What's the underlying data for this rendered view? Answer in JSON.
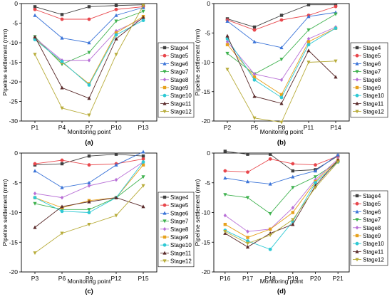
{
  "series_names": [
    "Stage4",
    "Stage5",
    "Stage6",
    "Stage7",
    "Stage8",
    "Stage9",
    "Stage10",
    "Stage11",
    "Stage12"
  ],
  "series_colors": [
    "#404040",
    "#e8474c",
    "#3b74d8",
    "#3fb24f",
    "#b86fd6",
    "#e6a21e",
    "#2ec9d4",
    "#5a2b2b",
    "#b8ac3a"
  ],
  "chart_data": [
    {
      "type": "line",
      "panel_label": "(a)",
      "xlabel": "Monitoring point",
      "ylabel": "Pipeline settlement (mm)",
      "categories": [
        "P1",
        "P4",
        "P7",
        "P10",
        "P13"
      ],
      "ylim": [
        -30,
        0
      ],
      "yticks": [
        0,
        -5,
        -10,
        -15,
        -20,
        -25,
        -30
      ],
      "legend_position": "right",
      "series": [
        {
          "name": "Stage4",
          "values": [
            -0.8,
            -2.8,
            -0.8,
            -0.5,
            -0.3
          ]
        },
        {
          "name": "Stage5",
          "values": [
            -1.5,
            -4.0,
            -4.0,
            -1.5,
            -0.8
          ]
        },
        {
          "name": "Stage6",
          "values": [
            -3.0,
            -8.8,
            -10.0,
            -3.0,
            -1.0
          ]
        },
        {
          "name": "Stage7",
          "values": [
            -8.5,
            -15.5,
            -12.5,
            -4.5,
            -2.0
          ]
        },
        {
          "name": "Stage8",
          "values": [
            -8.8,
            -14.5,
            -14.5,
            -7.0,
            -3.8
          ]
        },
        {
          "name": "Stage9",
          "values": [
            -9.0,
            -15.0,
            -20.5,
            -7.5,
            -3.3
          ]
        },
        {
          "name": "Stage10",
          "values": [
            -9.2,
            -14.8,
            -20.8,
            -8.0,
            -4.3
          ]
        },
        {
          "name": "Stage11",
          "values": [
            -8.5,
            -21.5,
            -24.2,
            -9.0,
            -3.5
          ]
        },
        {
          "name": "Stage12",
          "values": [
            -13.0,
            -26.7,
            -28.5,
            -13.0,
            -0.5
          ]
        }
      ]
    },
    {
      "type": "line",
      "panel_label": "(b)",
      "xlabel": "Monitoring point",
      "ylabel": "Pipeline settlement (mm)",
      "categories": [
        "P2",
        "P5",
        "P8",
        "P11",
        "P14"
      ],
      "ylim": [
        -20,
        0
      ],
      "yticks": [
        0,
        -5,
        -10,
        -15,
        -20
      ],
      "legend_position": "right",
      "series": [
        {
          "name": "Stage4",
          "values": [
            -2.6,
            -4.0,
            -2.0,
            -0.2,
            -0.2
          ]
        },
        {
          "name": "Stage5",
          "values": [
            -2.8,
            -4.5,
            -2.8,
            -2.0,
            -0.5
          ]
        },
        {
          "name": "Stage6",
          "values": [
            -3.0,
            -6.5,
            -7.5,
            -2.2,
            -1.5
          ]
        },
        {
          "name": "Stage7",
          "values": [
            -8.5,
            -12.0,
            -9.5,
            -4.5,
            -1.8
          ]
        },
        {
          "name": "Stage8",
          "values": [
            -6.5,
            -12.0,
            -13.0,
            -6.0,
            -4.0
          ]
        },
        {
          "name": "Stage9",
          "values": [
            -7.0,
            -12.5,
            -15.5,
            -6.5,
            -4.2
          ]
        },
        {
          "name": "Stage10",
          "values": [
            -6.0,
            -13.0,
            -16.0,
            -7.0,
            -4.2
          ]
        },
        {
          "name": "Stage11",
          "values": [
            -5.5,
            -15.8,
            -17.0,
            -8.0,
            -12.5
          ]
        },
        {
          "name": "Stage12",
          "values": [
            -11.2,
            -19.5,
            -20.2,
            -10.0,
            -9.8
          ]
        }
      ]
    },
    {
      "type": "line",
      "panel_label": "(c)",
      "xlabel": "Monitoring point",
      "ylabel": "Pipeline settlement (mm)",
      "categories": [
        "P3",
        "P6",
        "P9",
        "P12",
        "P15"
      ],
      "ylim": [
        -20,
        0
      ],
      "yticks": [
        0,
        -5,
        -10,
        -15,
        -20
      ],
      "legend_position": "right",
      "series": [
        {
          "name": "Stage4",
          "values": [
            -2.0,
            -1.8,
            -0.5,
            -0.2,
            -0.5
          ]
        },
        {
          "name": "Stage5",
          "values": [
            -1.8,
            -1.2,
            -2.0,
            -1.8,
            -1.0
          ]
        },
        {
          "name": "Stage6",
          "values": [
            -3.0,
            -5.8,
            -5.0,
            -2.0,
            0.2
          ]
        },
        {
          "name": "Stage7",
          "values": [
            -8.5,
            -9.5,
            -9.5,
            -7.5,
            -4.0
          ]
        },
        {
          "name": "Stage8",
          "values": [
            -6.8,
            -7.5,
            -5.5,
            -4.5,
            -1.5
          ]
        },
        {
          "name": "Stage9",
          "values": [
            -7.5,
            -9.2,
            -8.0,
            -7.5,
            -2.0
          ]
        },
        {
          "name": "Stage10",
          "values": [
            -7.5,
            -9.8,
            -10.0,
            -7.5,
            -1.5
          ]
        },
        {
          "name": "Stage11",
          "values": [
            -12.5,
            -9.0,
            -8.2,
            -7.5,
            -9.0
          ]
        },
        {
          "name": "Stage12",
          "values": [
            -16.8,
            -13.5,
            -12.0,
            -10.5,
            -5.5
          ]
        }
      ]
    },
    {
      "type": "line",
      "panel_label": "(d)",
      "xlabel": "Monitoring point",
      "ylabel": "Pipeline settlement (mm)",
      "categories": [
        "P16",
        "P17",
        "P18",
        "P19",
        "P20",
        "P21"
      ],
      "ylim": [
        -20,
        0
      ],
      "yticks": [
        0,
        -5,
        -10,
        -15,
        -20
      ],
      "legend_position": "right",
      "series": [
        {
          "name": "Stage4",
          "values": [
            0.3,
            -0.2,
            -0.2,
            -3.0,
            -2.8,
            -0.5
          ]
        },
        {
          "name": "Stage5",
          "values": [
            -3.0,
            -3.2,
            -1.0,
            -1.8,
            -2.0,
            -0.5
          ]
        },
        {
          "name": "Stage6",
          "values": [
            -4.2,
            -4.8,
            -5.2,
            -4.0,
            -3.0,
            -0.3
          ]
        },
        {
          "name": "Stage7",
          "values": [
            -7.0,
            -7.5,
            -10.2,
            -5.8,
            -4.0,
            -1.5
          ]
        },
        {
          "name": "Stage8",
          "values": [
            -10.5,
            -13.2,
            -12.8,
            -9.2,
            -4.5,
            -1.0
          ]
        },
        {
          "name": "Stage9",
          "values": [
            -12.0,
            -14.2,
            -12.8,
            -10.0,
            -4.8,
            -1.2
          ]
        },
        {
          "name": "Stage10",
          "values": [
            -13.0,
            -14.8,
            -16.2,
            -11.5,
            -5.0,
            -1.5
          ]
        },
        {
          "name": "Stage11",
          "values": [
            -13.5,
            -15.8,
            -13.5,
            -12.0,
            -5.5,
            -1.2
          ]
        },
        {
          "name": "Stage12",
          "values": [
            -13.2,
            -15.2,
            -13.8,
            -11.2,
            -5.8,
            -1.5
          ]
        }
      ]
    }
  ]
}
